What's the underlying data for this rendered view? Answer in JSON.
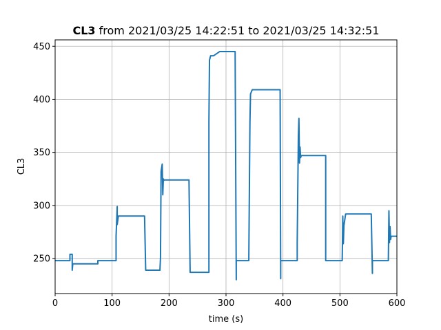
{
  "chart_data": {
    "type": "line",
    "title_bold": "CL3",
    "title_rest": " from 2021/03/25 14:22:51 to 2021/03/25 14:32:51",
    "xlabel": "time (s)",
    "ylabel": "CL3",
    "xlim": [
      0,
      600
    ],
    "ylim": [
      217,
      456
    ],
    "xticks": [
      0,
      100,
      200,
      300,
      400,
      500,
      600
    ],
    "yticks": [
      250,
      300,
      350,
      400,
      450
    ],
    "grid": true,
    "series": [
      {
        "color": "#1f77b4",
        "x": [
          0,
          26,
          26,
          30,
          30,
          31,
          31,
          70,
          75,
          75,
          107,
          107,
          109,
          109,
          111,
          111,
          157,
          157,
          159,
          159,
          184,
          185,
          186,
          188,
          189,
          190,
          190,
          191,
          191,
          235,
          235,
          237,
          237,
          270,
          270,
          271,
          273,
          278,
          278,
          289,
          289,
          316,
          316,
          318,
          318,
          321,
          321,
          340,
          342,
          343,
          346,
          360,
          395,
          395,
          396,
          396,
          400,
          400,
          425,
          425,
          427,
          428,
          429,
          430,
          431,
          432,
          433,
          434,
          436,
          460,
          475,
          475,
          503,
          504,
          505,
          506,
          507,
          510,
          555,
          555,
          557,
          557,
          584,
          585,
          586,
          587,
          588,
          589,
          590,
          600
        ],
        "y": [
          248,
          248,
          254,
          254,
          239,
          245,
          245,
          245,
          245,
          248,
          248,
          271,
          299,
          282,
          290,
          290,
          290,
          290,
          239,
          239,
          239,
          251,
          332,
          339,
          310,
          325,
          323,
          324,
          324,
          324,
          324,
          237,
          237,
          237,
          380,
          437,
          441,
          441,
          441,
          445,
          445,
          445,
          445,
          230,
          248,
          248,
          248,
          248,
          378,
          405,
          409,
          409,
          409,
          409,
          231,
          248,
          248,
          248,
          248,
          265,
          365,
          382,
          340,
          355,
          345,
          347,
          347,
          347,
          347,
          347,
          347,
          248,
          248,
          248,
          290,
          264,
          281,
          292,
          292,
          292,
          236,
          248,
          248,
          248,
          295,
          265,
          280,
          268,
          271,
          271
        ]
      }
    ]
  }
}
